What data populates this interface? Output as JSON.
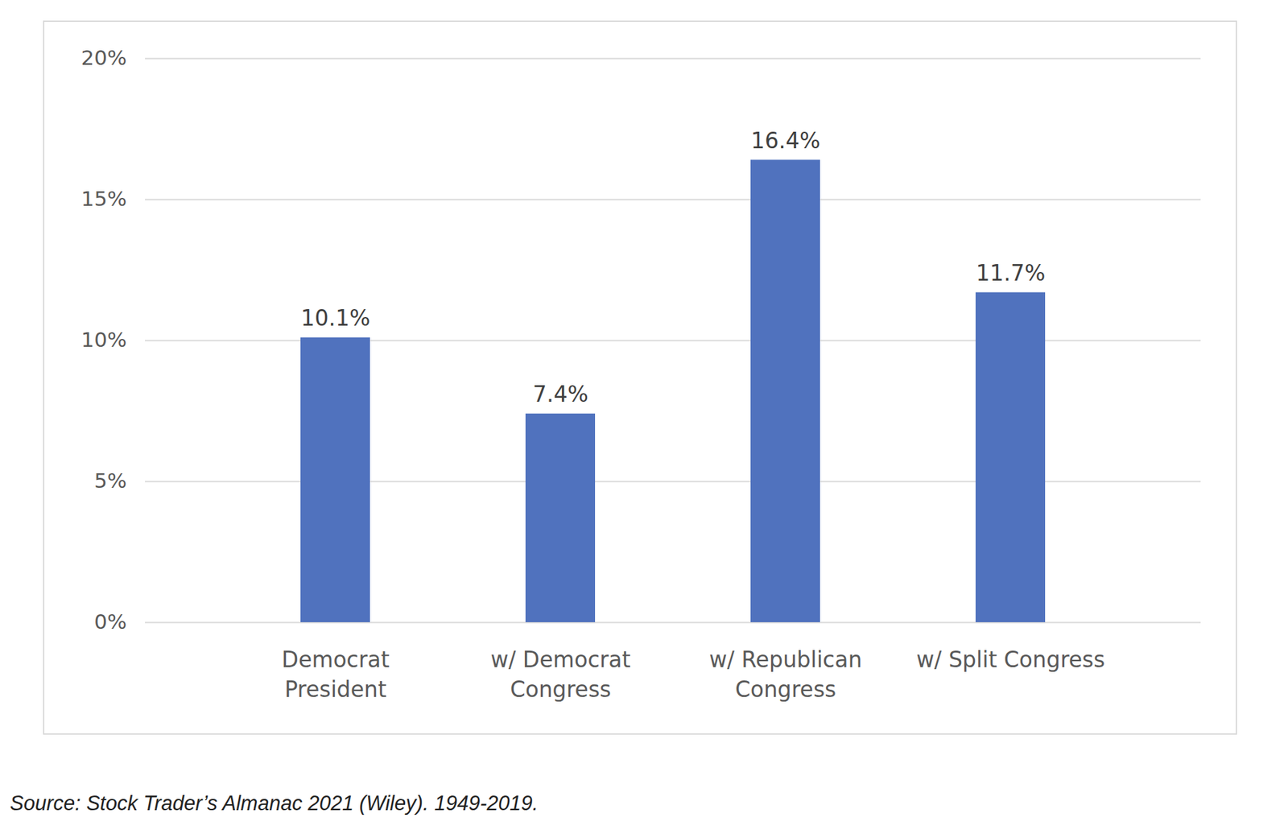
{
  "chart_data": {
    "type": "bar",
    "categories": [
      "Democrat\nPresident",
      "w/ Democrat\nCongress",
      "w/ Republican\nCongress",
      "w/ Split Congress"
    ],
    "values": [
      10.1,
      7.4,
      16.4,
      11.7
    ],
    "value_labels": [
      "10.1%",
      "7.4%",
      "16.4%",
      "11.7%"
    ],
    "data_labels": true,
    "color": "#5072be",
    "ylim": [
      0,
      20
    ],
    "yticks": [
      {
        "value": 0,
        "label": "0%"
      },
      {
        "value": 5,
        "label": "5%"
      },
      {
        "value": 10,
        "label": "10%"
      },
      {
        "value": 15,
        "label": "15%"
      },
      {
        "value": 20,
        "label": "20%"
      }
    ],
    "grid": true,
    "caption": "Source: Stock Trader’s Almanac 2021 (Wiley). 1949-2019."
  }
}
